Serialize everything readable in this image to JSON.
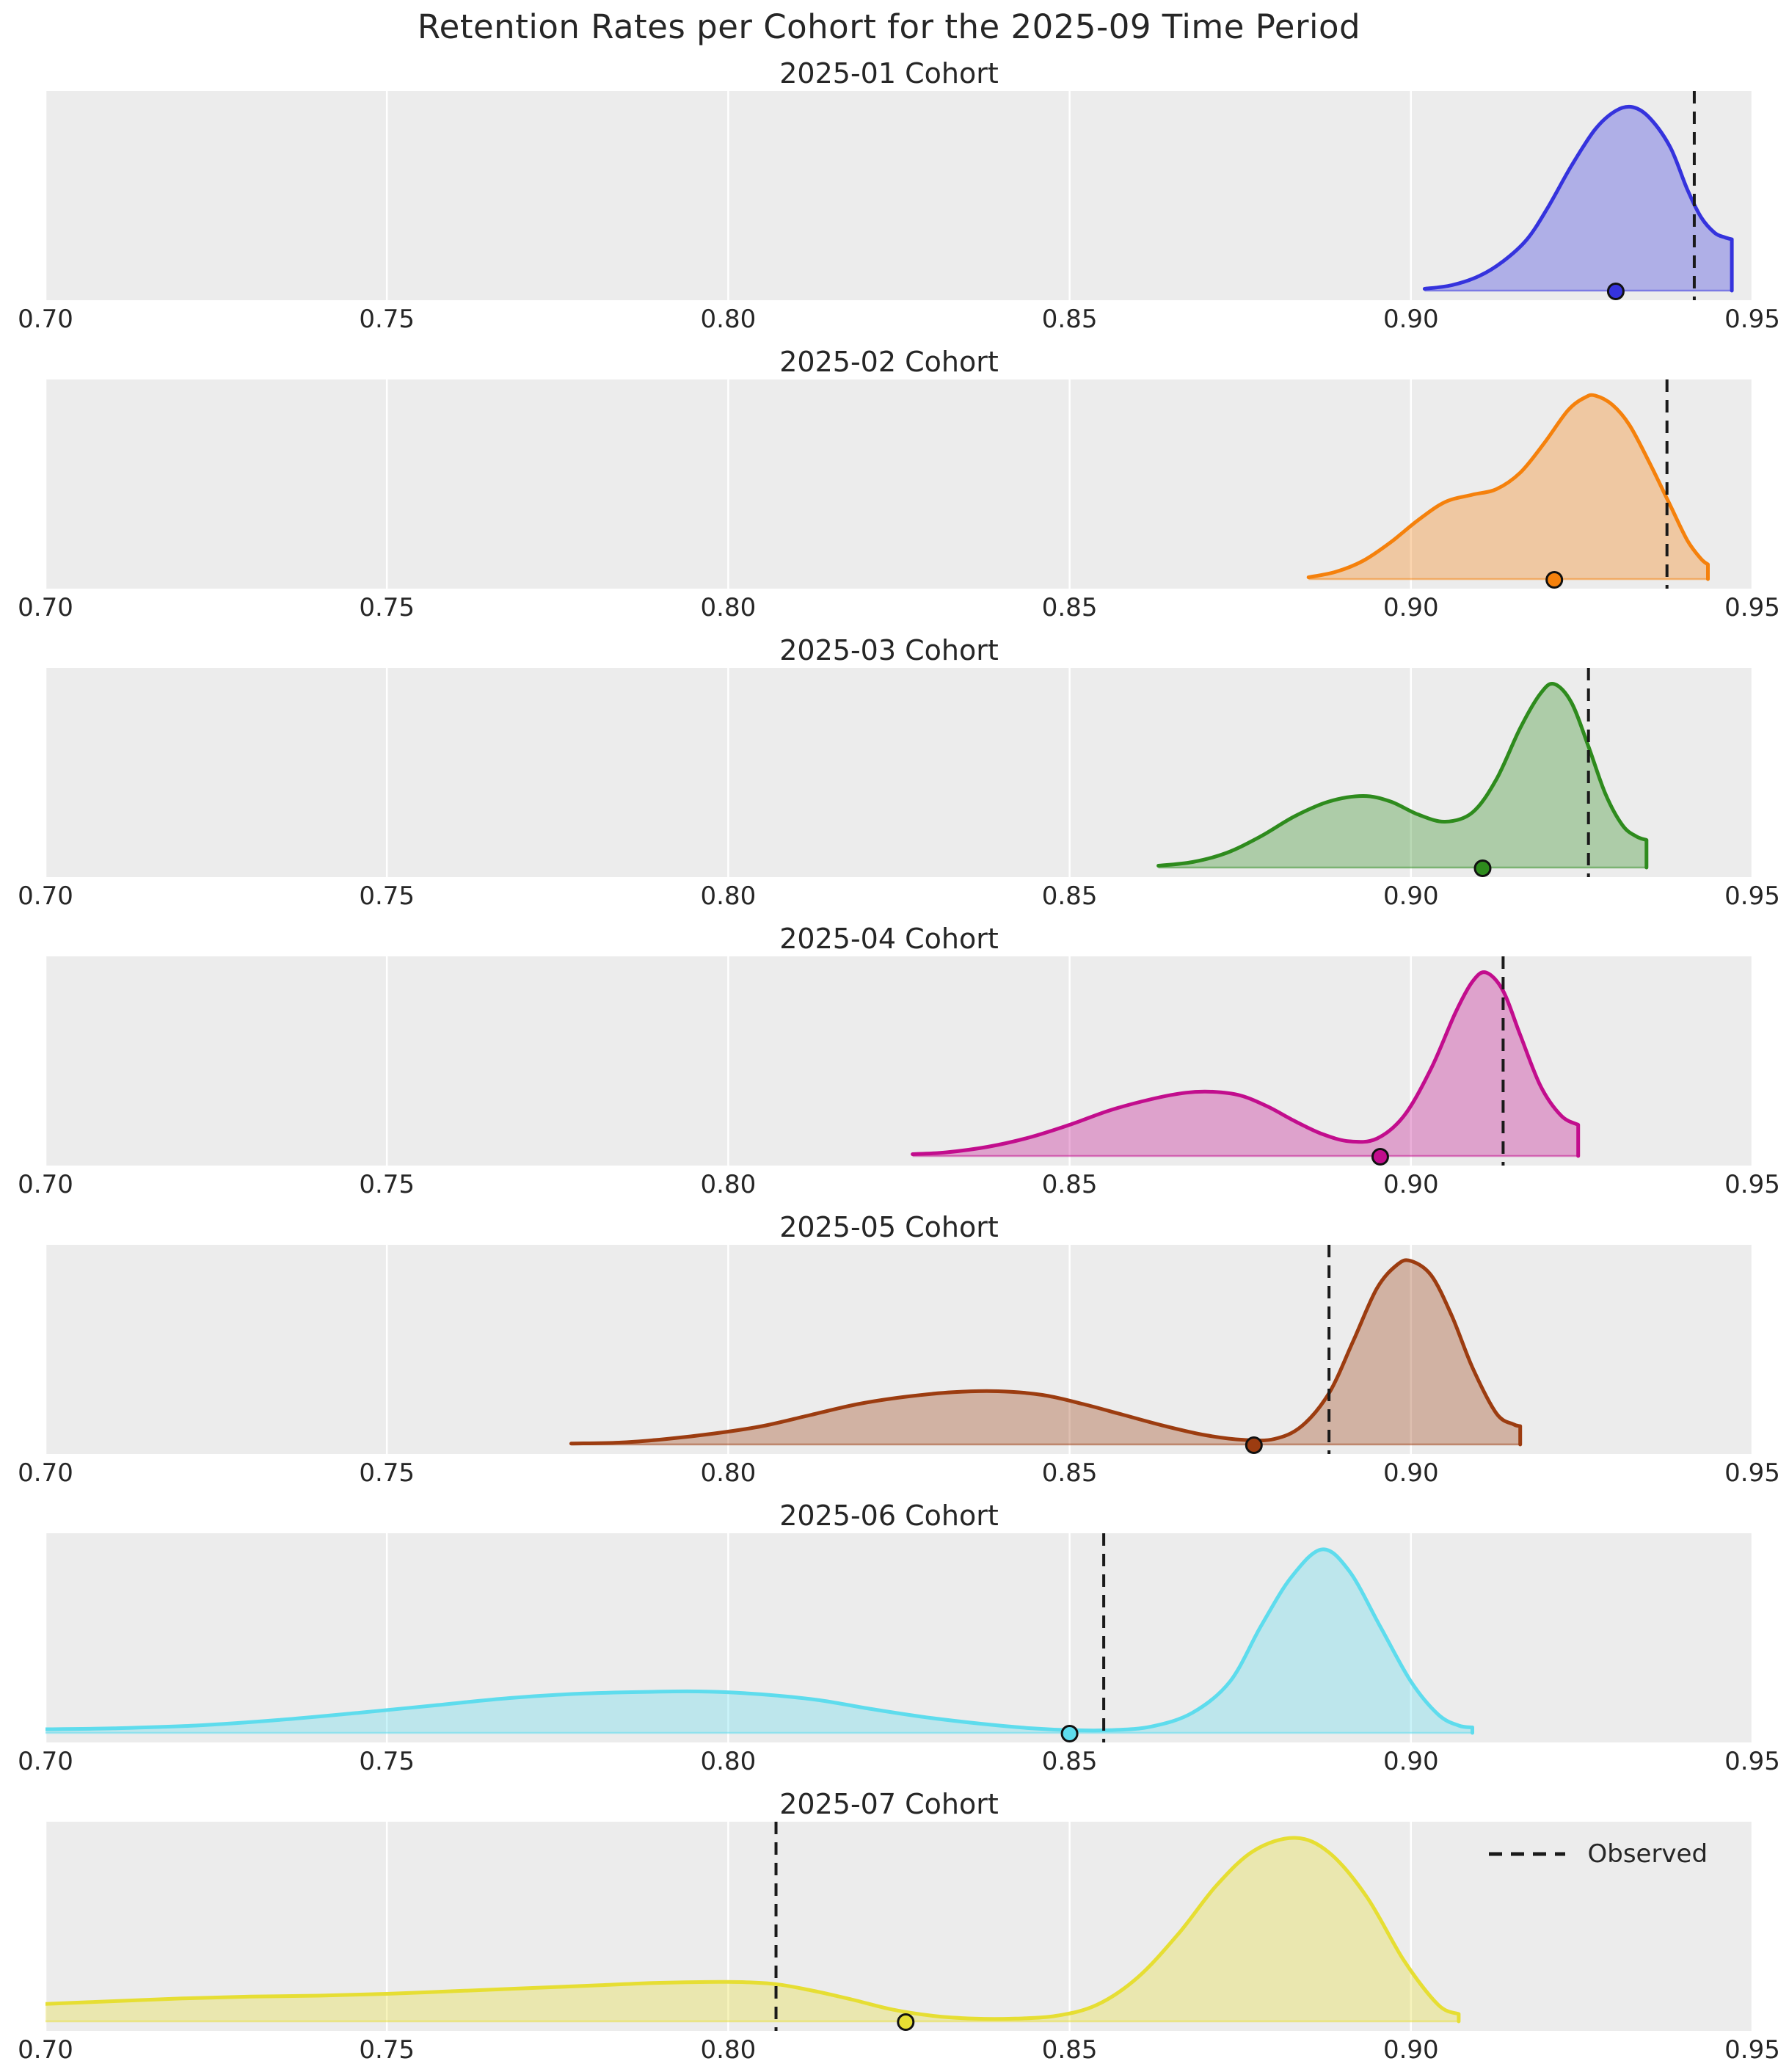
{
  "figure": {
    "title": "Retention Rates per Cohort for the 2025-09 Time Period"
  },
  "legend": {
    "label": "Observed",
    "style": "dashed-black-line"
  },
  "x_axis": {
    "range": [
      0.7,
      0.95
    ],
    "ticks": [
      {
        "label": "0.70",
        "value": 0.7
      },
      {
        "label": "0.75",
        "value": 0.75
      },
      {
        "label": "0.80",
        "value": 0.8
      },
      {
        "label": "0.85",
        "value": 0.85
      },
      {
        "label": "0.90",
        "value": 0.9
      },
      {
        "label": "0.95",
        "value": 0.95
      }
    ]
  },
  "style": {
    "plot_background": "#ececec",
    "gridline_color": "#ffffff",
    "text_color": "#262626",
    "observed_line_color": "#1a1a1a",
    "fill_opacity": 0.33
  },
  "chart_data": {
    "type": "area",
    "kind": "ridgeline-kde-posteriors",
    "title": "Retention Rates per Cohort for the 2025-09 Time Period",
    "x_range": [
      0.7,
      0.95
    ],
    "legend_label": "Observed",
    "subplots": [
      {
        "cohort": "2025-01",
        "title": "2025-01 Cohort",
        "color": "#3533dd",
        "observed": 0.9415,
        "point": 0.93,
        "legend": false,
        "density": {
          "x": [
            0.902,
            0.906,
            0.91,
            0.9135,
            0.917,
            0.92,
            0.9235,
            0.927,
            0.93,
            0.9325,
            0.935,
            0.938,
            0.9405,
            0.9425,
            0.9445,
            0.946,
            0.947
          ],
          "h": [
            0.01,
            0.03,
            0.08,
            0.16,
            0.28,
            0.45,
            0.68,
            0.88,
            0.98,
            1.0,
            0.94,
            0.78,
            0.55,
            0.4,
            0.315,
            0.29,
            0.28
          ]
        }
      },
      {
        "cohort": "2025-02",
        "title": "2025-02 Cohort",
        "color": "#f5810c",
        "observed": 0.9375,
        "point": 0.921,
        "legend": false,
        "density": {
          "x": [
            0.885,
            0.889,
            0.893,
            0.897,
            0.901,
            0.905,
            0.909,
            0.9125,
            0.916,
            0.9195,
            0.923,
            0.9255,
            0.927,
            0.9295,
            0.932,
            0.935,
            0.938,
            0.9405,
            0.9425,
            0.9435
          ],
          "h": [
            0.01,
            0.04,
            0.1,
            0.2,
            0.32,
            0.42,
            0.46,
            0.49,
            0.58,
            0.74,
            0.92,
            0.99,
            1.0,
            0.95,
            0.84,
            0.63,
            0.4,
            0.21,
            0.11,
            0.08
          ]
        }
      },
      {
        "cohort": "2025-03",
        "title": "2025-03 Cohort",
        "color": "#2e8b1d",
        "observed": 0.926,
        "point": 0.9105,
        "legend": false,
        "density": {
          "x": [
            0.863,
            0.868,
            0.873,
            0.878,
            0.883,
            0.888,
            0.893,
            0.897,
            0.901,
            0.905,
            0.909,
            0.9125,
            0.916,
            0.919,
            0.921,
            0.9235,
            0.926,
            0.9285,
            0.931,
            0.933,
            0.9345
          ],
          "h": [
            0.01,
            0.03,
            0.08,
            0.17,
            0.28,
            0.36,
            0.39,
            0.36,
            0.29,
            0.25,
            0.3,
            0.48,
            0.76,
            0.95,
            1.0,
            0.9,
            0.66,
            0.4,
            0.23,
            0.17,
            0.15
          ]
        }
      },
      {
        "cohort": "2025-04",
        "title": "2025-04 Cohort",
        "color": "#c20d8d",
        "observed": 0.9135,
        "point": 0.8955,
        "legend": false,
        "density": {
          "x": [
            0.827,
            0.832,
            0.838,
            0.844,
            0.85,
            0.856,
            0.862,
            0.867,
            0.871,
            0.875,
            0.879,
            0.883,
            0.887,
            0.891,
            0.895,
            0.899,
            0.903,
            0.9065,
            0.909,
            0.911,
            0.9135,
            0.916,
            0.919,
            0.922,
            0.9245
          ],
          "h": [
            0.01,
            0.02,
            0.05,
            0.1,
            0.17,
            0.25,
            0.31,
            0.345,
            0.35,
            0.33,
            0.27,
            0.19,
            0.12,
            0.08,
            0.095,
            0.22,
            0.48,
            0.78,
            0.95,
            1.0,
            0.9,
            0.66,
            0.38,
            0.22,
            0.17
          ]
        }
      },
      {
        "cohort": "2025-05",
        "title": "2025-05 Cohort",
        "color": "#9c3c10",
        "observed": 0.888,
        "point": 0.877,
        "legend": false,
        "density": {
          "x": [
            0.777,
            0.784,
            0.791,
            0.798,
            0.805,
            0.812,
            0.819,
            0.826,
            0.833,
            0.8395,
            0.846,
            0.852,
            0.858,
            0.864,
            0.87,
            0.8755,
            0.88,
            0.884,
            0.888,
            0.8915,
            0.895,
            0.898,
            0.9,
            0.903,
            0.906,
            0.909,
            0.9125,
            0.915,
            0.916
          ],
          "h": [
            0.005,
            0.01,
            0.03,
            0.06,
            0.1,
            0.16,
            0.22,
            0.26,
            0.285,
            0.29,
            0.27,
            0.22,
            0.16,
            0.1,
            0.05,
            0.025,
            0.03,
            0.1,
            0.28,
            0.56,
            0.85,
            0.98,
            1.0,
            0.92,
            0.7,
            0.42,
            0.17,
            0.11,
            0.1
          ]
        }
      },
      {
        "cohort": "2025-06",
        "title": "2025-06 Cohort",
        "color": "#5edced",
        "observed": 0.855,
        "point": 0.85,
        "legend": false,
        "density": {
          "x": [
            0.7,
            0.71,
            0.722,
            0.734,
            0.746,
            0.757,
            0.768,
            0.779,
            0.79,
            0.797,
            0.805,
            0.813,
            0.821,
            0.829,
            0.837,
            0.8445,
            0.85,
            0.856,
            0.862,
            0.868,
            0.8735,
            0.878,
            0.8825,
            0.887,
            0.891,
            0.8955,
            0.9,
            0.904,
            0.907,
            0.909
          ],
          "h": [
            0.02,
            0.025,
            0.04,
            0.07,
            0.11,
            0.15,
            0.19,
            0.215,
            0.225,
            0.225,
            0.21,
            0.18,
            0.13,
            0.085,
            0.05,
            0.025,
            0.015,
            0.015,
            0.035,
            0.11,
            0.28,
            0.58,
            0.85,
            1.0,
            0.88,
            0.58,
            0.28,
            0.1,
            0.04,
            0.03
          ]
        }
      },
      {
        "cohort": "2025-07",
        "title": "2025-07 Cohort",
        "color": "#e6de33",
        "observed": 0.807,
        "point": 0.826,
        "legend": true,
        "density": {
          "x": [
            0.7,
            0.71,
            0.72,
            0.73,
            0.74,
            0.75,
            0.76,
            0.77,
            0.78,
            0.79,
            0.8,
            0.8065,
            0.812,
            0.818,
            0.824,
            0.83,
            0.836,
            0.842,
            0.848,
            0.854,
            0.86,
            0.866,
            0.8715,
            0.877,
            0.883,
            0.888,
            0.8935,
            0.899,
            0.904,
            0.907
          ],
          "h": [
            0.095,
            0.11,
            0.125,
            0.135,
            0.14,
            0.15,
            0.165,
            0.18,
            0.195,
            0.21,
            0.215,
            0.205,
            0.17,
            0.12,
            0.065,
            0.03,
            0.015,
            0.015,
            0.03,
            0.09,
            0.24,
            0.48,
            0.74,
            0.93,
            1.0,
            0.92,
            0.68,
            0.33,
            0.09,
            0.04
          ]
        }
      }
    ]
  }
}
